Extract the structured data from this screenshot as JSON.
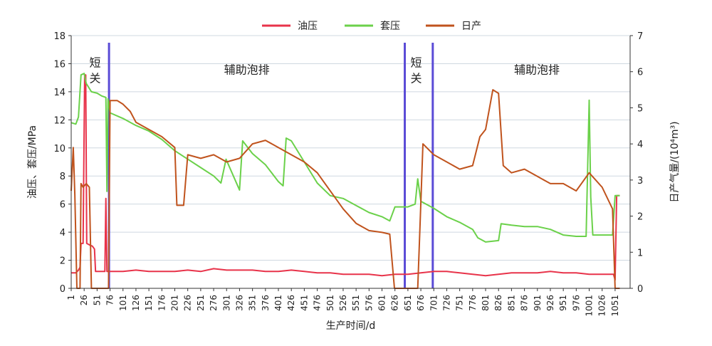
{
  "chart_data": {
    "type": "line",
    "title": "",
    "xlabel": "生产时间/d",
    "ylabel": "油压、套压/MPa",
    "y2label": "日产气量/(10⁴m³)",
    "xlim": [
      1,
      1080
    ],
    "ylim": [
      0,
      18
    ],
    "y2lim": [
      0,
      7
    ],
    "x_ticks": [
      1,
      26,
      51,
      76,
      101,
      126,
      151,
      176,
      201,
      226,
      251,
      276,
      301,
      326,
      351,
      376,
      401,
      426,
      451,
      476,
      501,
      526,
      551,
      576,
      601,
      626,
      651,
      676,
      701,
      726,
      751,
      776,
      801,
      826,
      851,
      876,
      901,
      926,
      951,
      976,
      1001,
      1026,
      1051
    ],
    "y_ticks": [
      0,
      2,
      4,
      6,
      8,
      10,
      12,
      14,
      16,
      18
    ],
    "y2_ticks": [
      0,
      1,
      2,
      3,
      4,
      5,
      6,
      7
    ],
    "grid": "horizontal",
    "legend_position": "top",
    "series": [
      {
        "name": "油压",
        "color": "#e8334a",
        "axis": "left",
        "points": [
          [
            1,
            1.1
          ],
          [
            10,
            1.1
          ],
          [
            15,
            1.3
          ],
          [
            18,
            1.5
          ],
          [
            20,
            3.2
          ],
          [
            24,
            3.2
          ],
          [
            27,
            15.2
          ],
          [
            29,
            15.2
          ],
          [
            31,
            3.2
          ],
          [
            36,
            3.1
          ],
          [
            42,
            3.0
          ],
          [
            46,
            2.8
          ],
          [
            48,
            1.2
          ],
          [
            66,
            1.2
          ],
          [
            68,
            6.4
          ],
          [
            70,
            1.2
          ],
          [
            76,
            1.2
          ],
          [
            101,
            1.2
          ],
          [
            126,
            1.3
          ],
          [
            151,
            1.2
          ],
          [
            176,
            1.2
          ],
          [
            201,
            1.2
          ],
          [
            226,
            1.3
          ],
          [
            251,
            1.2
          ],
          [
            276,
            1.4
          ],
          [
            301,
            1.3
          ],
          [
            326,
            1.3
          ],
          [
            351,
            1.3
          ],
          [
            376,
            1.2
          ],
          [
            401,
            1.2
          ],
          [
            426,
            1.3
          ],
          [
            451,
            1.2
          ],
          [
            476,
            1.1
          ],
          [
            501,
            1.1
          ],
          [
            526,
            1.0
          ],
          [
            551,
            1.0
          ],
          [
            576,
            1.0
          ],
          [
            601,
            0.9
          ],
          [
            626,
            1.0
          ],
          [
            651,
            1.0
          ],
          [
            676,
            1.1
          ],
          [
            701,
            1.2
          ],
          [
            726,
            1.2
          ],
          [
            751,
            1.1
          ],
          [
            776,
            1.0
          ],
          [
            801,
            0.9
          ],
          [
            826,
            1.0
          ],
          [
            851,
            1.1
          ],
          [
            876,
            1.1
          ],
          [
            901,
            1.1
          ],
          [
            926,
            1.2
          ],
          [
            951,
            1.1
          ],
          [
            976,
            1.1
          ],
          [
            1001,
            1.0
          ],
          [
            1026,
            1.0
          ],
          [
            1048,
            1.0
          ],
          [
            1051,
            0.6
          ],
          [
            1054,
            6.6
          ],
          [
            1060,
            6.6
          ]
        ]
      },
      {
        "name": "套压",
        "color": "#6bd14a",
        "axis": "left",
        "points": [
          [
            1,
            11.8
          ],
          [
            10,
            11.7
          ],
          [
            15,
            12.2
          ],
          [
            20,
            15.2
          ],
          [
            26,
            15.3
          ],
          [
            30,
            14.6
          ],
          [
            40,
            14.0
          ],
          [
            51,
            13.9
          ],
          [
            60,
            13.7
          ],
          [
            68,
            13.6
          ],
          [
            70,
            6.9
          ],
          [
            72,
            13.5
          ],
          [
            76,
            12.5
          ],
          [
            101,
            12.1
          ],
          [
            126,
            11.6
          ],
          [
            151,
            11.2
          ],
          [
            176,
            10.6
          ],
          [
            201,
            9.8
          ],
          [
            226,
            9.2
          ],
          [
            251,
            8.6
          ],
          [
            276,
            8.0
          ],
          [
            290,
            7.5
          ],
          [
            300,
            9.2
          ],
          [
            301,
            9.1
          ],
          [
            326,
            7.0
          ],
          [
            332,
            10.5
          ],
          [
            351,
            9.6
          ],
          [
            376,
            8.8
          ],
          [
            401,
            7.6
          ],
          [
            410,
            7.3
          ],
          [
            416,
            10.7
          ],
          [
            426,
            10.5
          ],
          [
            451,
            9.0
          ],
          [
            476,
            7.5
          ],
          [
            501,
            6.6
          ],
          [
            526,
            6.4
          ],
          [
            551,
            5.9
          ],
          [
            576,
            5.4
          ],
          [
            601,
            5.1
          ],
          [
            616,
            4.8
          ],
          [
            626,
            5.8
          ],
          [
            651,
            5.8
          ],
          [
            665,
            6.0
          ],
          [
            670,
            7.8
          ],
          [
            676,
            6.2
          ],
          [
            701,
            5.7
          ],
          [
            726,
            5.1
          ],
          [
            751,
            4.7
          ],
          [
            776,
            4.2
          ],
          [
            786,
            3.6
          ],
          [
            801,
            3.3
          ],
          [
            826,
            3.4
          ],
          [
            831,
            4.6
          ],
          [
            851,
            4.5
          ],
          [
            876,
            4.4
          ],
          [
            901,
            4.4
          ],
          [
            926,
            4.2
          ],
          [
            951,
            3.8
          ],
          [
            976,
            3.7
          ],
          [
            995,
            3.7
          ],
          [
            1001,
            13.4
          ],
          [
            1004,
            6.5
          ],
          [
            1008,
            3.8
          ],
          [
            1026,
            3.8
          ],
          [
            1046,
            3.8
          ],
          [
            1051,
            6.6
          ],
          [
            1060,
            6.6
          ]
        ]
      },
      {
        "name": "日产",
        "color": "#c0531d",
        "axis": "right",
        "points": [
          [
            1,
            2.7
          ],
          [
            5,
            3.9
          ],
          [
            8,
            2.6
          ],
          [
            12,
            0
          ],
          [
            18,
            0
          ],
          [
            20,
            2.9
          ],
          [
            24,
            2.8
          ],
          [
            30,
            2.9
          ],
          [
            36,
            2.8
          ],
          [
            40,
            0
          ],
          [
            45,
            0
          ],
          [
            50,
            0
          ],
          [
            73,
            0
          ],
          [
            76,
            5.2
          ],
          [
            90,
            5.2
          ],
          [
            101,
            5.1
          ],
          [
            115,
            4.9
          ],
          [
            126,
            4.6
          ],
          [
            151,
            4.4
          ],
          [
            176,
            4.2
          ],
          [
            201,
            3.9
          ],
          [
            205,
            2.3
          ],
          [
            218,
            2.3
          ],
          [
            226,
            3.7
          ],
          [
            251,
            3.6
          ],
          [
            276,
            3.7
          ],
          [
            301,
            3.5
          ],
          [
            326,
            3.6
          ],
          [
            351,
            4.0
          ],
          [
            376,
            4.1
          ],
          [
            401,
            3.9
          ],
          [
            426,
            3.7
          ],
          [
            451,
            3.5
          ],
          [
            476,
            3.2
          ],
          [
            501,
            2.7
          ],
          [
            526,
            2.2
          ],
          [
            551,
            1.8
          ],
          [
            576,
            1.6
          ],
          [
            601,
            1.55
          ],
          [
            616,
            1.5
          ],
          [
            625,
            0
          ],
          [
            670,
            0
          ],
          [
            675,
            2.0
          ],
          [
            680,
            4.0
          ],
          [
            701,
            3.7
          ],
          [
            726,
            3.5
          ],
          [
            751,
            3.3
          ],
          [
            776,
            3.4
          ],
          [
            790,
            4.2
          ],
          [
            801,
            4.4
          ],
          [
            815,
            5.5
          ],
          [
            826,
            5.4
          ],
          [
            835,
            3.4
          ],
          [
            851,
            3.2
          ],
          [
            876,
            3.3
          ],
          [
            901,
            3.1
          ],
          [
            926,
            2.9
          ],
          [
            951,
            2.9
          ],
          [
            976,
            2.7
          ],
          [
            1001,
            3.2
          ],
          [
            1026,
            2.8
          ],
          [
            1046,
            2.2
          ],
          [
            1051,
            0
          ],
          [
            1060,
            0
          ]
        ]
      }
    ],
    "vertical_markers": [
      {
        "x": 74,
        "color": "#5a4bd6"
      },
      {
        "x": 645,
        "color": "#5a4bd6"
      },
      {
        "x": 699,
        "color": "#5a4bd6"
      }
    ],
    "annotations": [
      {
        "text": "短关",
        "x": 47,
        "y": 15.8,
        "vertical": true
      },
      {
        "text": "辅助泡排",
        "x": 340,
        "y": 15.3,
        "vertical": false
      },
      {
        "text": "短关",
        "x": 667,
        "y": 15.8,
        "vertical": true
      },
      {
        "text": "辅助泡排",
        "x": 900,
        "y": 15.3,
        "vertical": false
      }
    ]
  }
}
